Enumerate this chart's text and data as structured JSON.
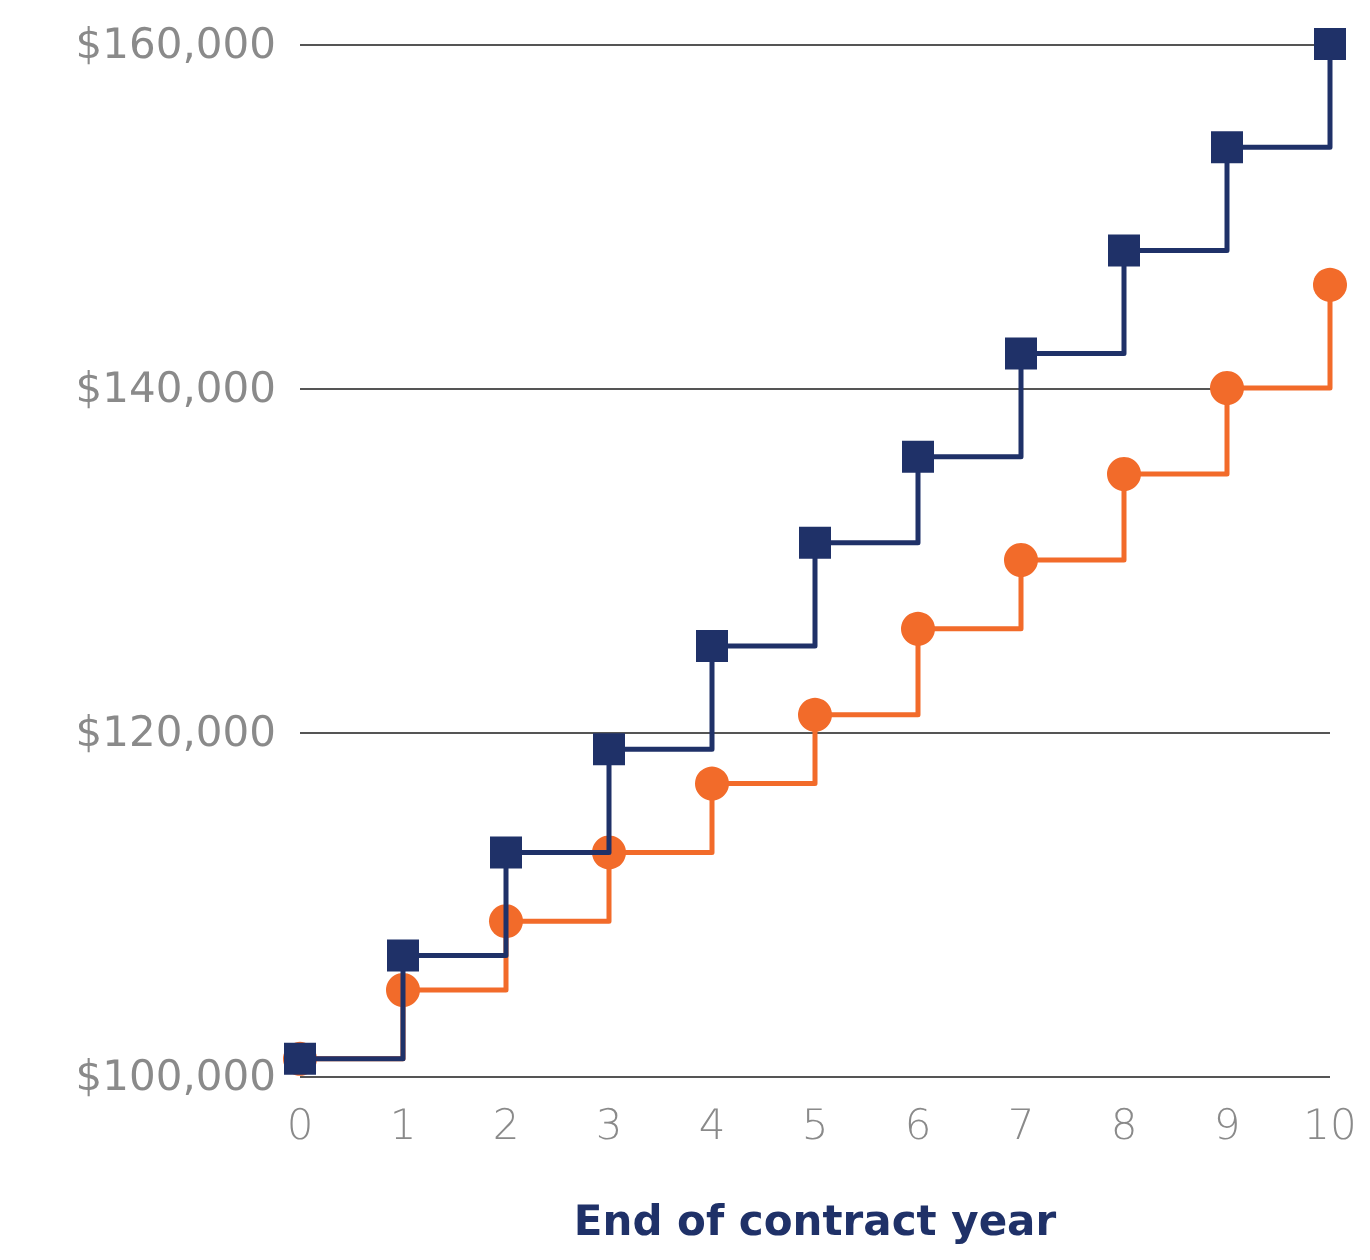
{
  "chart_data": {
    "type": "step",
    "xlabel": "End of contract year",
    "categories": [
      "0",
      "1",
      "2",
      "3",
      "4",
      "5",
      "6",
      "7",
      "8",
      "9",
      "10"
    ],
    "series": [
      {
        "color": "#1f3168",
        "marker": "square",
        "values": [
          101000,
          107000,
          113000,
          119000,
          125000,
          131000,
          136000,
          142000,
          148000,
          154000,
          160000
        ]
      },
      {
        "color": "#f26b2a",
        "marker": "circle",
        "values": [
          101000,
          105000,
          109000,
          113000,
          117000,
          121000,
          126000,
          130000,
          135000,
          140000,
          146000
        ]
      }
    ],
    "ylim": [
      100000,
      160000
    ],
    "yticks": [
      {
        "value": 100000,
        "label": "$100,000"
      },
      {
        "value": 120000,
        "label": "$120,000"
      },
      {
        "value": 140000,
        "label": "$140,000"
      },
      {
        "value": 160000,
        "label": "$160,000"
      }
    ],
    "grid": "y"
  }
}
